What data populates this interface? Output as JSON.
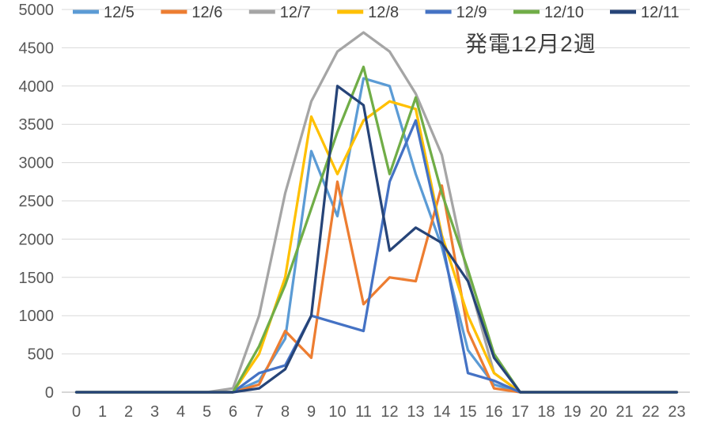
{
  "title": "発電12月2週",
  "chart_data": {
    "type": "line",
    "title": "発電12月2週",
    "x": [
      0,
      1,
      2,
      3,
      4,
      5,
      6,
      7,
      8,
      9,
      10,
      11,
      12,
      13,
      14,
      15,
      16,
      17,
      18,
      19,
      20,
      21,
      22,
      23
    ],
    "series": [
      {
        "name": "12/5",
        "color": "#5B9BD5",
        "values": [
          0,
          0,
          0,
          0,
          0,
          0,
          0,
          150,
          700,
          3150,
          2300,
          4100,
          4000,
          2850,
          1900,
          550,
          100,
          0,
          0,
          0,
          0,
          0,
          0,
          0
        ]
      },
      {
        "name": "12/6",
        "color": "#ED7D31",
        "values": [
          0,
          0,
          0,
          0,
          0,
          0,
          0,
          100,
          800,
          450,
          2750,
          1150,
          1500,
          1450,
          2700,
          800,
          50,
          0,
          0,
          0,
          0,
          0,
          0,
          0
        ]
      },
      {
        "name": "12/7",
        "color": "#A5A5A5",
        "values": [
          0,
          0,
          0,
          0,
          0,
          0,
          50,
          1000,
          2600,
          3800,
          4450,
          4700,
          4450,
          3900,
          3100,
          1500,
          250,
          0,
          0,
          0,
          0,
          0,
          0,
          0
        ]
      },
      {
        "name": "12/8",
        "color": "#FFC000",
        "values": [
          0,
          0,
          0,
          0,
          0,
          0,
          0,
          500,
          1500,
          3600,
          2850,
          3550,
          3800,
          3700,
          2050,
          1000,
          250,
          0,
          0,
          0,
          0,
          0,
          0,
          0
        ]
      },
      {
        "name": "12/9",
        "color": "#4472C4",
        "values": [
          0,
          0,
          0,
          0,
          0,
          0,
          0,
          250,
          350,
          1000,
          900,
          800,
          2750,
          3550,
          2000,
          250,
          150,
          0,
          0,
          0,
          0,
          0,
          0,
          0
        ]
      },
      {
        "name": "12/10",
        "color": "#70AD47",
        "values": [
          0,
          0,
          0,
          0,
          0,
          0,
          0,
          600,
          1400,
          2400,
          3400,
          4250,
          2850,
          3850,
          2600,
          1600,
          500,
          0,
          0,
          0,
          0,
          0,
          0,
          0
        ]
      },
      {
        "name": "12/11",
        "color": "#264478",
        "values": [
          0,
          0,
          0,
          0,
          0,
          0,
          0,
          50,
          300,
          1000,
          4000,
          3750,
          1850,
          2150,
          1950,
          1450,
          450,
          0,
          0,
          0,
          0,
          0,
          0,
          0
        ]
      }
    ],
    "ylim": [
      0,
      5000
    ],
    "ytick_step": 500,
    "xlabel": "",
    "ylabel": "",
    "grid": true,
    "legend_position": "top",
    "colors": {
      "gridline": "#D9D9D9",
      "axis_line": "#BFBFBF",
      "tick_text": "#595959",
      "title_text": "#404040"
    }
  }
}
